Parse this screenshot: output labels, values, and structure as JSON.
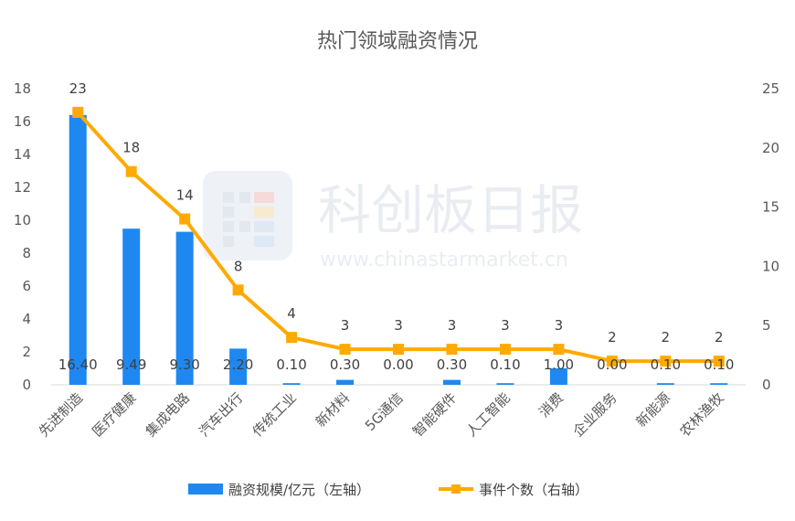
{
  "chart_data": {
    "type": "bar+line",
    "title": "热门领域融资情况",
    "categories": [
      "先进制造",
      "医疗健康",
      "集成电路",
      "汽车出行",
      "传统工业",
      "新材料",
      "5G通信",
      "智能硬件",
      "人工智能",
      "消费",
      "企业服务",
      "新能源",
      "农林渔牧"
    ],
    "series": [
      {
        "name": "融资规模/亿元（左轴）",
        "type": "bar",
        "axis": "left",
        "color": "#1e88f0",
        "values": [
          16.4,
          9.49,
          9.3,
          2.2,
          0.1,
          0.3,
          0.0,
          0.3,
          0.1,
          1.0,
          0.0,
          0.1,
          0.1
        ],
        "labels": [
          "16.40",
          "9.49",
          "9.30",
          "2.20",
          "0.10",
          "0.30",
          "0.00",
          "0.30",
          "0.10",
          "1.00",
          "0.00",
          "0.10",
          "0.10"
        ]
      },
      {
        "name": "事件个数（右轴）",
        "type": "line",
        "axis": "right",
        "color": "#ffaa00",
        "values": [
          23,
          18,
          14,
          8,
          4,
          3,
          3,
          3,
          3,
          3,
          2,
          2,
          2
        ],
        "labels": [
          "23",
          "18",
          "14",
          "8",
          "4",
          "3",
          "3",
          "3",
          "3",
          "3",
          "2",
          "2",
          "2"
        ]
      }
    ],
    "left_axis": {
      "ylim": [
        0,
        18
      ],
      "ticks": [
        "0",
        "2",
        "4",
        "6",
        "8",
        "10",
        "12",
        "14",
        "16",
        "18"
      ]
    },
    "right_axis": {
      "ylim": [
        0,
        25
      ],
      "ticks": [
        "0",
        "5",
        "10",
        "15",
        "20",
        "25"
      ]
    },
    "grid": false,
    "legend_position": "bottom"
  },
  "watermark": {
    "brand": "科创板日报",
    "url": "www.chinastarmarket.cn"
  }
}
